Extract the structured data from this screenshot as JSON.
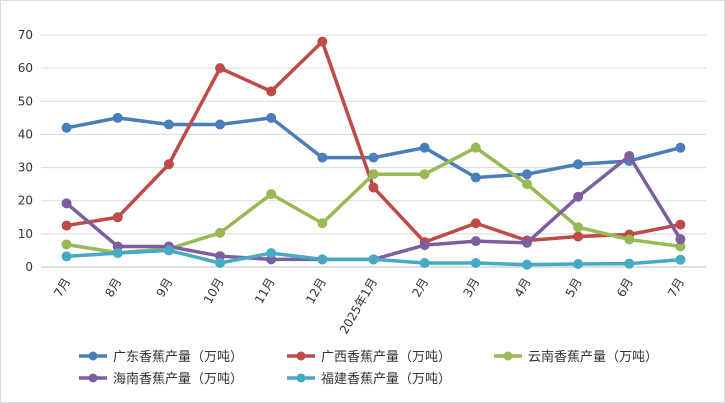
{
  "chart_data": {
    "type": "line",
    "title": "",
    "xlabel": "",
    "ylabel": "",
    "ylim": [
      0,
      70
    ],
    "yticks": [
      0,
      10,
      20,
      30,
      40,
      50,
      60,
      70
    ],
    "grid": "horizontal",
    "legend_placement": "bottom",
    "categories": [
      "7月",
      "8月",
      "9月",
      "10月",
      "11月",
      "12月",
      "2025年1月",
      "2月",
      "3月",
      "4月",
      "5月",
      "6月",
      "7月"
    ],
    "series": [
      {
        "name": "广东香蕉产量（万吨）",
        "color": "#4a7ebb",
        "values": [
          42,
          45,
          43,
          43,
          45,
          33,
          33,
          36,
          27,
          28,
          31,
          32,
          36
        ]
      },
      {
        "name": "广西香蕉产量（万吨）",
        "color": "#be4b48",
        "values": [
          12.5,
          15,
          31,
          60,
          53,
          68,
          24,
          7.5,
          13.2,
          8,
          9.2,
          9.8,
          12.8
        ]
      },
      {
        "name": "云南香蕉产量（万吨）",
        "color": "#98b954",
        "values": [
          6.8,
          4.3,
          5.5,
          10.3,
          22,
          13.2,
          28,
          28,
          36,
          25,
          12,
          8.3,
          6.2
        ]
      },
      {
        "name": "海南香蕉产量（万吨）",
        "color": "#7d5fa0",
        "values": [
          19.2,
          6.2,
          6.2,
          3.3,
          2.3,
          2.3,
          2.3,
          6.6,
          7.8,
          7.3,
          21.2,
          33.5,
          8.4
        ]
      },
      {
        "name": "福建香蕉产量（万吨）",
        "color": "#46aac5",
        "values": [
          3.2,
          4.2,
          5,
          1.2,
          4.2,
          2.3,
          2.3,
          1.2,
          1.2,
          0.7,
          0.9,
          1,
          2.2
        ]
      }
    ]
  }
}
